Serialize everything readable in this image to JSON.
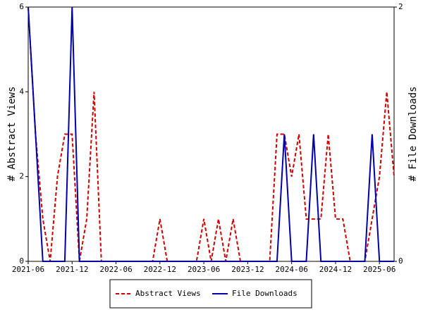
{
  "chart_data": {
    "type": "line",
    "ylabel": "# Abstract Views",
    "y2label": "# File Downloads",
    "categories": [
      "2021-06",
      null,
      null,
      null,
      null,
      null,
      "2021-12",
      null,
      null,
      null,
      null,
      null,
      "2022-06",
      null,
      null,
      null,
      null,
      null,
      "2022-12",
      null,
      null,
      null,
      null,
      null,
      "2023-06",
      null,
      null,
      null,
      null,
      null,
      "2023-12",
      null,
      null,
      null,
      null,
      null,
      "2024-06",
      null,
      null,
      null,
      null,
      null,
      "2024-12",
      null,
      null,
      null,
      null,
      null,
      "2025-06",
      null,
      null
    ],
    "series": [
      {
        "name": "Abstract Views",
        "color": "#cc0000",
        "dashed": true,
        "values": [
          6,
          3,
          1,
          0,
          2,
          3,
          3,
          0,
          1,
          4,
          0,
          0,
          0,
          0,
          0,
          0,
          0,
          0,
          1,
          0,
          0,
          0,
          0,
          0,
          1,
          0,
          1,
          0,
          1,
          0,
          0,
          0,
          0,
          0,
          3,
          3,
          2,
          3,
          1,
          1,
          1,
          3,
          1,
          1,
          0,
          0,
          0,
          1,
          2,
          4,
          2
        ]
      },
      {
        "name": "File Downloads",
        "color": "#0000aa",
        "axis": "y2",
        "values": [
          2,
          1,
          0,
          0,
          0,
          0,
          2,
          0,
          0,
          0,
          0,
          0,
          0,
          0,
          0,
          0,
          0,
          0,
          0,
          0,
          0,
          0,
          0,
          0,
          0,
          0,
          0,
          0,
          0,
          0,
          0,
          0,
          0,
          0,
          0,
          1,
          0,
          0,
          0,
          1,
          0,
          0,
          0,
          0,
          0,
          0,
          0,
          1,
          0,
          0,
          0
        ]
      }
    ],
    "ylim": [
      0,
      6
    ],
    "yticks": [
      0,
      2,
      4,
      6
    ],
    "y2lim": [
      0,
      2
    ],
    "y2ticks": [
      0,
      2
    ],
    "legend": "bottom"
  }
}
